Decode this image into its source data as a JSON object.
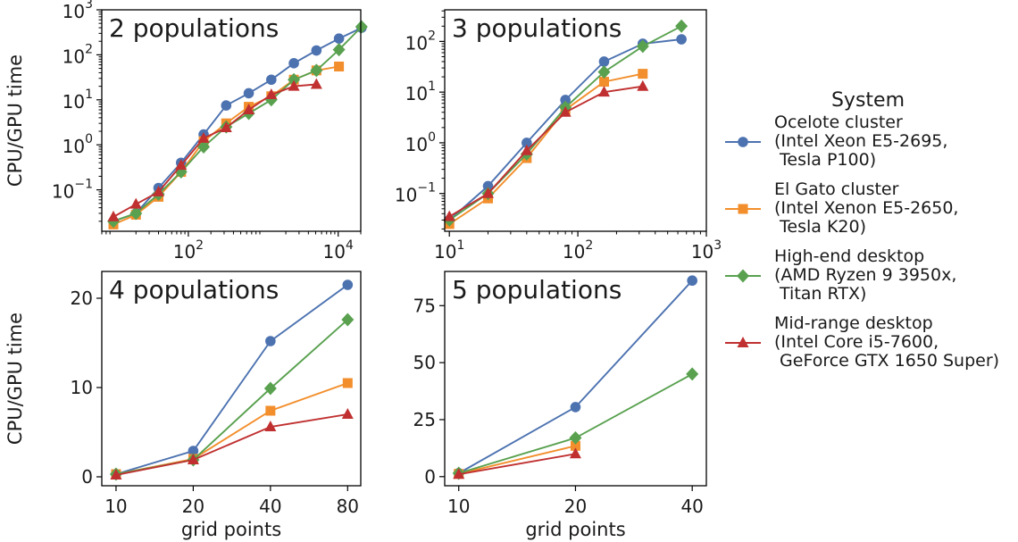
{
  "figure": {
    "ylabel": "CPU/GPU time",
    "xlabel": "grid points"
  },
  "legend": {
    "title": "System",
    "entries": [
      {
        "lines": [
          "Ocelote cluster",
          "(Intel Xeon E5-2695,",
          " Tesla P100)"
        ],
        "color": "#4c72b0",
        "marker": "circle"
      },
      {
        "lines": [
          "El Gato cluster",
          "(Intel Xenon E5-2650,",
          " Tesla K20)"
        ],
        "color": "#f28e2b",
        "marker": "square"
      },
      {
        "lines": [
          "High-end desktop",
          "(AMD Ryzen 9 3950x,",
          " Titan RTX)"
        ],
        "color": "#59a14f",
        "marker": "diamond"
      },
      {
        "lines": [
          "Mid-range desktop",
          "(Intel Core i5-7600,",
          " GeForce GTX 1650 Super)"
        ],
        "color": "#c03030",
        "marker": "triangle"
      }
    ]
  },
  "chart_data": [
    {
      "type": "line",
      "title": "2 populations",
      "xscale": "log",
      "yscale": "log",
      "xlim": [
        7,
        20000
      ],
      "ylim": [
        0.012,
        1000
      ],
      "xticks": [
        100,
        10000
      ],
      "xtick_labels": [
        [
          "10",
          "2"
        ],
        [
          "10",
          "4"
        ]
      ],
      "yticks": [
        0.1,
        1,
        10,
        100,
        1000
      ],
      "ytick_labels": [
        [
          "10",
          "−1"
        ],
        [
          "10",
          "0"
        ],
        [
          "10",
          "1"
        ],
        [
          "10",
          "2"
        ],
        [
          "10",
          "3"
        ]
      ],
      "ylabel": "CPU/GPU time",
      "xlabel": "",
      "series": [
        {
          "name": "Ocelote cluster",
          "x": [
            10,
            20,
            40,
            80,
            160,
            320,
            640,
            1280,
            2560,
            5120,
            10240,
            20480
          ],
          "values": [
            0.02,
            0.03,
            0.11,
            0.4,
            1.7,
            7.5,
            14,
            28,
            65,
            125,
            230,
            400
          ]
        },
        {
          "name": "El Gato cluster",
          "x": [
            10,
            20,
            40,
            80,
            160,
            320,
            640,
            1280,
            2560,
            5120,
            10240
          ],
          "values": [
            0.017,
            0.028,
            0.07,
            0.25,
            1.2,
            3,
            7,
            12,
            28,
            45,
            55
          ]
        },
        {
          "name": "High-end desktop",
          "x": [
            10,
            20,
            40,
            80,
            160,
            320,
            640,
            1280,
            2560,
            5120,
            10240,
            20480
          ],
          "values": [
            0.02,
            0.03,
            0.08,
            0.25,
            0.9,
            2.5,
            5,
            10,
            28,
            45,
            130,
            420
          ]
        },
        {
          "name": "Mid-range desktop",
          "x": [
            10,
            20,
            40,
            80,
            160,
            320,
            640,
            1280,
            2560,
            5120
          ],
          "values": [
            0.025,
            0.048,
            0.09,
            0.35,
            1.4,
            2.4,
            6,
            13,
            20,
            22
          ]
        }
      ]
    },
    {
      "type": "line",
      "title": "3 populations",
      "xscale": "log",
      "yscale": "log",
      "xlim": [
        9.2,
        1000
      ],
      "ylim": [
        0.018,
        420
      ],
      "xticks": [
        10,
        100,
        1000
      ],
      "xtick_labels": [
        [
          "10",
          "1"
        ],
        [
          "10",
          "2"
        ],
        [
          "10",
          "3"
        ]
      ],
      "yticks": [
        0.1,
        1,
        10,
        100
      ],
      "ytick_labels": [
        [
          "10",
          "−1"
        ],
        [
          "10",
          "0"
        ],
        [
          "10",
          "1"
        ],
        [
          "10",
          "2"
        ]
      ],
      "ylabel": "",
      "xlabel": "",
      "series": [
        {
          "name": "Ocelote cluster",
          "x": [
            10,
            20,
            40,
            80,
            160,
            320,
            640
          ],
          "values": [
            0.03,
            0.14,
            1,
            7,
            40,
            90,
            110
          ]
        },
        {
          "name": "El Gato cluster",
          "x": [
            10,
            20,
            40,
            80,
            160,
            320
          ],
          "values": [
            0.025,
            0.08,
            0.5,
            4.5,
            16,
            23
          ]
        },
        {
          "name": "High-end desktop",
          "x": [
            10,
            20,
            40,
            80,
            160,
            320,
            640
          ],
          "values": [
            0.03,
            0.1,
            0.6,
            5,
            25,
            80,
            200
          ]
        },
        {
          "name": "Mid-range desktop",
          "x": [
            10,
            20,
            40,
            80,
            160,
            320
          ],
          "values": [
            0.035,
            0.1,
            0.7,
            4,
            10,
            13
          ]
        }
      ]
    },
    {
      "type": "line",
      "title": "4 populations",
      "xscale": "log2",
      "yscale": "linear",
      "xlim": [
        8.8,
        90
      ],
      "ylim": [
        -1,
        23
      ],
      "xticks": [
        10,
        20,
        40,
        80
      ],
      "xtick_labels": [
        [
          "10"
        ],
        [
          "20"
        ],
        [
          "40"
        ],
        [
          "80"
        ]
      ],
      "yticks": [
        0,
        10,
        20
      ],
      "ytick_labels": [
        [
          "0"
        ],
        [
          "10"
        ],
        [
          "20"
        ]
      ],
      "ylabel": "CPU/GPU time",
      "xlabel": "grid points",
      "series": [
        {
          "name": "Ocelote cluster",
          "x": [
            10,
            20,
            40,
            80
          ],
          "values": [
            0.3,
            2.9,
            15.2,
            21.5
          ]
        },
        {
          "name": "El Gato cluster",
          "x": [
            10,
            20,
            40,
            80
          ],
          "values": [
            0.3,
            2,
            7.4,
            10.5
          ]
        },
        {
          "name": "High-end desktop",
          "x": [
            10,
            20,
            40,
            80
          ],
          "values": [
            0.3,
            1.9,
            9.9,
            17.6
          ]
        },
        {
          "name": "Mid-range desktop",
          "x": [
            10,
            20,
            40,
            80
          ],
          "values": [
            0.2,
            1.9,
            5.6,
            7
          ]
        }
      ]
    },
    {
      "type": "line",
      "title": "5 populations",
      "xscale": "log2",
      "yscale": "linear",
      "xlim": [
        9.2,
        43.5
      ],
      "ylim": [
        -4,
        90
      ],
      "xticks": [
        10,
        20,
        40
      ],
      "xtick_labels": [
        [
          "10"
        ],
        [
          "20"
        ],
        [
          "40"
        ]
      ],
      "yticks": [
        0,
        25,
        50,
        75
      ],
      "ytick_labels": [
        [
          "0"
        ],
        [
          "25"
        ],
        [
          "50"
        ],
        [
          "75"
        ]
      ],
      "ylabel": "",
      "xlabel": "grid points",
      "series": [
        {
          "name": "Ocelote cluster",
          "x": [
            10,
            20,
            40
          ],
          "values": [
            1.5,
            30.5,
            86
          ]
        },
        {
          "name": "El Gato cluster",
          "x": [
            10,
            20
          ],
          "values": [
            1.2,
            13.5
          ]
        },
        {
          "name": "High-end desktop",
          "x": [
            10,
            20,
            40
          ],
          "values": [
            1.5,
            17,
            45
          ]
        },
        {
          "name": "Mid-range desktop",
          "x": [
            10,
            20
          ],
          "values": [
            1,
            10
          ]
        }
      ]
    }
  ]
}
